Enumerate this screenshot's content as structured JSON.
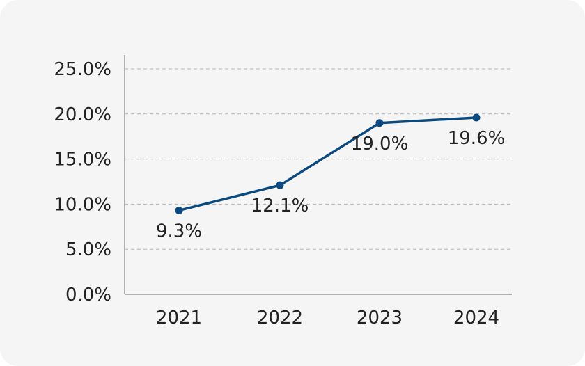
{
  "colors": {
    "background": "#f5f5f5",
    "series": "#0b4a80",
    "grid": "#b5b5b5",
    "axis": "#999999",
    "text": "#222222"
  },
  "chart_data": {
    "type": "line",
    "title": "",
    "xlabel": "",
    "ylabel": "",
    "categories": [
      "2021",
      "2022",
      "2023",
      "2024"
    ],
    "series": [
      {
        "values": [
          9.3,
          12.1,
          19.0,
          19.6
        ],
        "labels": [
          "9.3%",
          "12.1%",
          "19.0%",
          "19.6%"
        ]
      }
    ],
    "ylim": [
      0,
      25
    ],
    "yticks": [
      0,
      5,
      10,
      15,
      20,
      25
    ],
    "ytick_labels": [
      "0.0%",
      "5.0%",
      "10.0%",
      "15.0%",
      "20.0%",
      "25.0%"
    ],
    "grid": true,
    "grid_style": "dashed horizontal",
    "legend": "none"
  }
}
